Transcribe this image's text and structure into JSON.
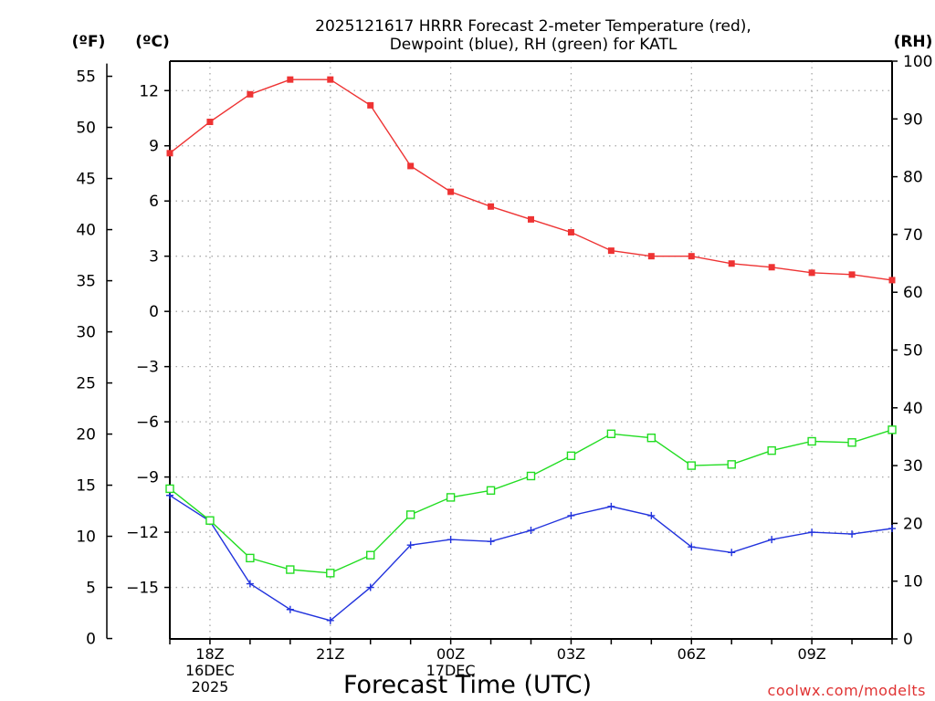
{
  "chart_data": {
    "type": "line",
    "title_line1": "2025121617 HRRR Forecast 2-meter Temperature (red),",
    "title_line2": "Dewpoint (blue), RH (green) for KATL",
    "xlabel": "Forecast Time (UTC)",
    "watermark": "coolwx.com/modelts",
    "left_outer_label": "(ºF)",
    "left_inner_label": "(ºC)",
    "right_label": "(RH)",
    "x_hours": [
      17,
      18,
      19,
      20,
      21,
      22,
      23,
      24,
      25,
      26,
      27,
      28,
      29,
      30,
      31,
      32,
      33,
      34,
      35
    ],
    "x_tick_labels": [
      {
        "hour": 18,
        "lines": [
          "18Z",
          "16DEC",
          "2025"
        ]
      },
      {
        "hour": 21,
        "lines": [
          "21Z"
        ]
      },
      {
        "hour": 24,
        "lines": [
          "00Z",
          "17DEC"
        ]
      },
      {
        "hour": 27,
        "lines": [
          "03Z"
        ]
      },
      {
        "hour": 30,
        "lines": [
          "06Z"
        ]
      },
      {
        "hour": 33,
        "lines": [
          "09Z"
        ]
      }
    ],
    "celsius_ticks": [
      12,
      9,
      6,
      3,
      0,
      -3,
      -6,
      -9,
      -12,
      -15
    ],
    "celsius_range": [
      -17.8,
      13.6
    ],
    "fahrenheit_ticks": [
      55,
      50,
      45,
      40,
      35,
      30,
      25,
      20,
      15,
      10,
      5,
      0
    ],
    "rh_ticks": [
      100,
      90,
      80,
      70,
      60,
      50,
      40,
      30,
      20,
      10,
      0
    ],
    "rh_range": [
      0,
      100
    ],
    "series": [
      {
        "name": "Temperature",
        "unit": "C",
        "color": "#ee3333",
        "marker": "filled-square",
        "values": [
          8.6,
          10.3,
          11.8,
          12.6,
          12.6,
          11.2,
          7.9,
          6.5,
          5.7,
          5.0,
          4.3,
          3.3,
          3.0,
          3.0,
          2.6,
          2.4,
          2.1,
          2.0,
          1.7
        ]
      },
      {
        "name": "Dewpoint",
        "unit": "C",
        "color": "#2233dd",
        "marker": "plus",
        "values": [
          -10.0,
          -11.4,
          -14.8,
          -16.2,
          -16.8,
          -15.0,
          -12.7,
          -12.4,
          -12.5,
          -11.9,
          -11.1,
          -10.6,
          -11.1,
          -12.8,
          -13.1,
          -12.4,
          -12.0,
          -12.1,
          -11.8
        ]
      },
      {
        "name": "Relative Humidity",
        "unit": "%",
        "color": "#22dd22",
        "marker": "open-square",
        "values": [
          26,
          20.5,
          14,
          12,
          11.4,
          14.5,
          21.5,
          24.5,
          25.7,
          28.2,
          31.7,
          35.5,
          34.8,
          30,
          30.2,
          32.6,
          34.2,
          34,
          36.2
        ]
      }
    ]
  }
}
